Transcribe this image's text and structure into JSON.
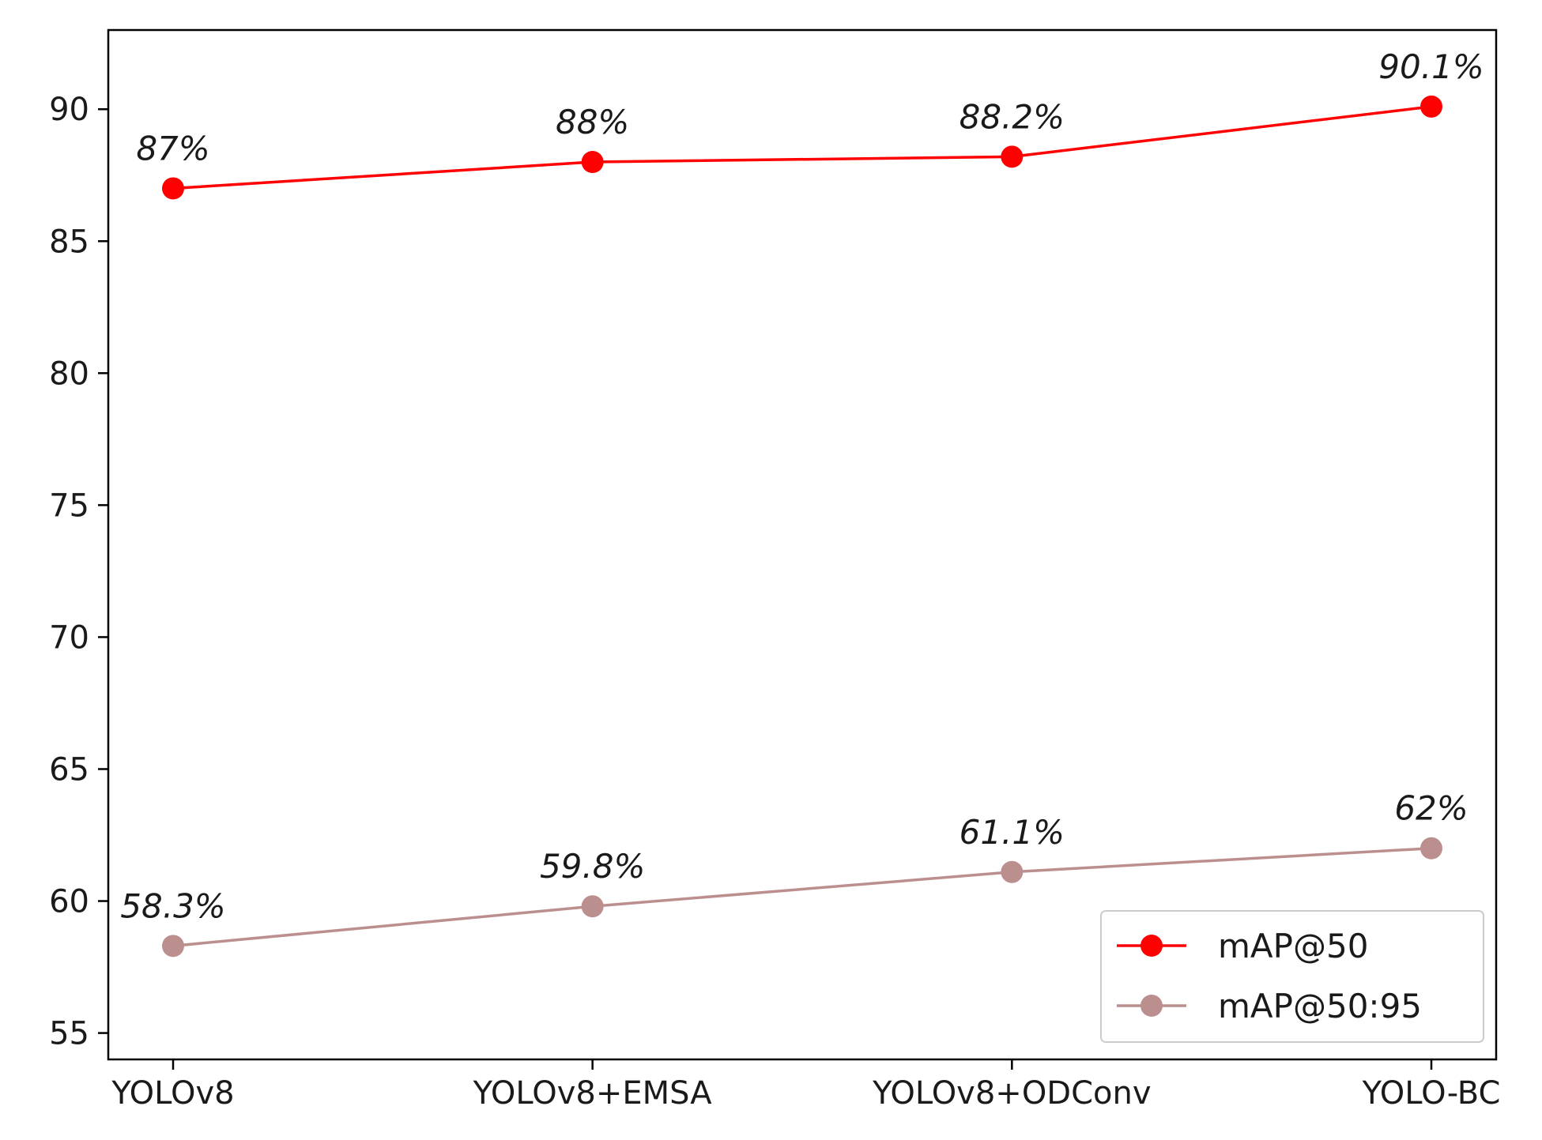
{
  "chart_data": {
    "type": "line",
    "title": "",
    "xlabel": "",
    "ylabel": "",
    "categories": [
      "YOLOv8",
      "YOLOv8+EMSA",
      "YOLOv8+ODConv",
      "YOLO-BC"
    ],
    "ylim": [
      54,
      93
    ],
    "yticks": [
      55,
      60,
      65,
      70,
      75,
      80,
      85,
      90
    ],
    "grid": false,
    "legend_position": "lower-right",
    "series": [
      {
        "name": "mAP@50",
        "color": "#ff0000",
        "marker": "circle",
        "values": [
          87,
          88,
          88.2,
          90.1
        ],
        "labels": [
          "87%",
          "88%",
          "88.2%",
          "90.1%"
        ]
      },
      {
        "name": "mAP@50:95",
        "color": "#bc8f8f",
        "marker": "circle",
        "values": [
          58.3,
          59.8,
          61.1,
          62
        ],
        "labels": [
          "58.3%",
          "59.8%",
          "61.1%",
          "62%"
        ]
      }
    ]
  }
}
